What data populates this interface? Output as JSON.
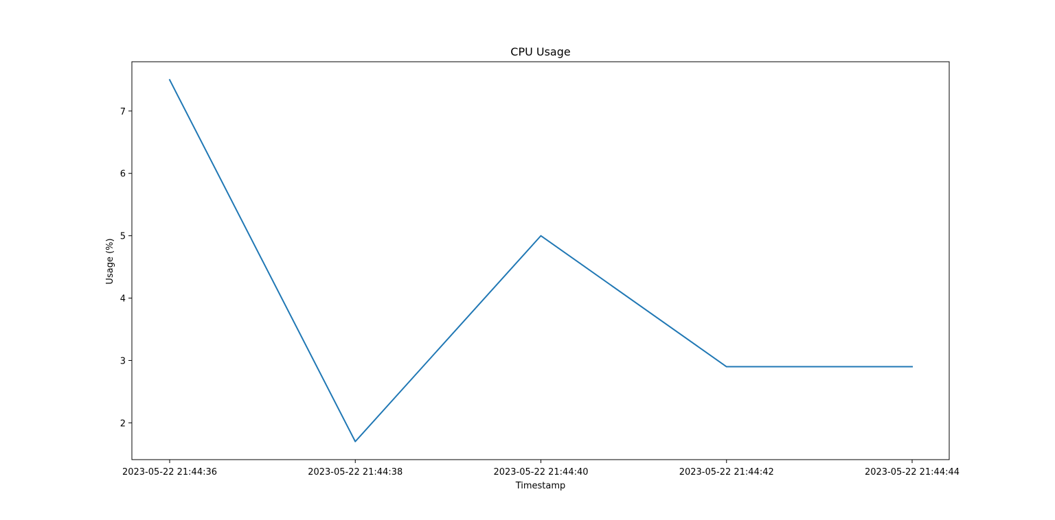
{
  "chart_data": {
    "type": "line",
    "title": "CPU Usage",
    "xlabel": "Timestamp",
    "ylabel": "Usage (%)",
    "x": [
      "2023-05-22 21:44:36",
      "2023-05-22 21:44:38",
      "2023-05-22 21:44:40",
      "2023-05-22 21:44:42",
      "2023-05-22 21:44:44"
    ],
    "series": [
      {
        "values": [
          7.5,
          1.7,
          5.0,
          2.9,
          2.9
        ],
        "color": "#1f77b4"
      }
    ],
    "xticks": [
      "2023-05-22 21:44:36",
      "2023-05-22 21:44:38",
      "2023-05-22 21:44:40",
      "2023-05-22 21:44:42",
      "2023-05-22 21:44:44"
    ],
    "yticks": [
      2,
      3,
      4,
      5,
      6,
      7
    ],
    "ylim": [
      1.41,
      7.79
    ],
    "grid": false,
    "legend": "none"
  }
}
